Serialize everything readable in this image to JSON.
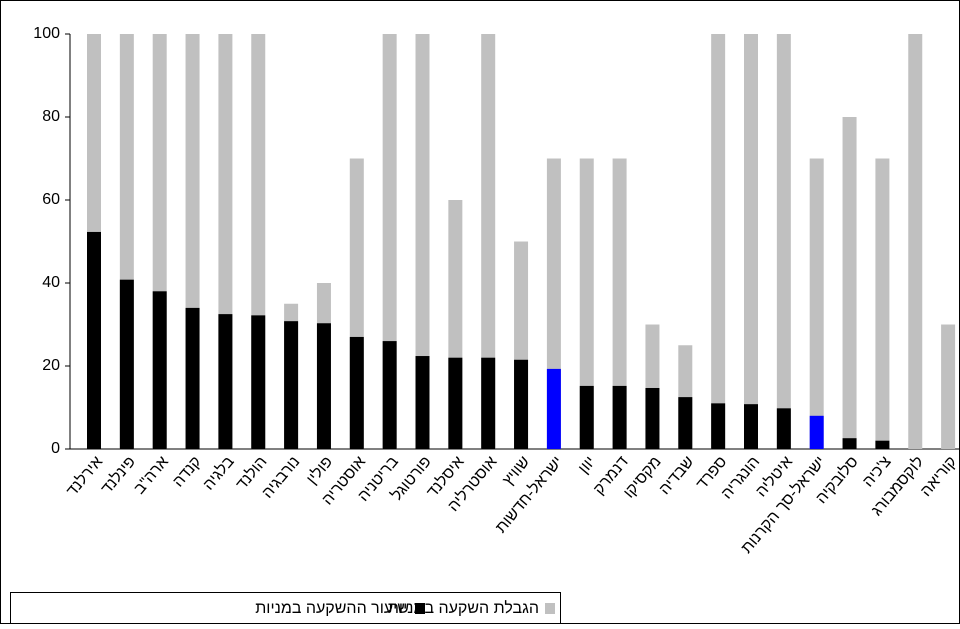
{
  "chart_data": {
    "type": "bar",
    "mode": "overlap",
    "categories": [
      "אירלנד",
      "פינלנד",
      "ארה\"ב",
      "קנדה",
      "בלגיה",
      "הולנד",
      "נורבגיה",
      "פולין",
      "אוסטריה",
      "בריטניה",
      "פורטוגל",
      "איסלנד",
      "אוסטרליה",
      "שוויץ",
      "ישראל-חדשות",
      "יוון",
      "דנמרק",
      "מקסיקו",
      "שבדיה",
      "ספרד",
      "הונגריה",
      "איטליה",
      "ישראל-סך הקרנות",
      "סלובקיה",
      "צ'כיה",
      "לוקסמבורג",
      "קוריאה"
    ],
    "series": [
      {
        "name": "הגבלת השקעה במניות",
        "color": "#c0c0c0",
        "values": [
          100,
          100,
          100,
          100,
          100,
          100,
          35,
          40,
          70,
          100,
          100,
          60,
          100,
          50,
          70,
          70,
          70,
          30,
          25,
          100,
          100,
          100,
          70,
          80,
          70,
          100,
          30
        ]
      },
      {
        "name": "שיעור ההשקעה במניות",
        "color": "#000000",
        "colors": [
          "#000000",
          "#000000",
          "#000000",
          "#000000",
          "#000000",
          "#000000",
          "#000000",
          "#000000",
          "#000000",
          "#000000",
          "#000000",
          "#000000",
          "#000000",
          "#000000",
          "#0000ff",
          "#000000",
          "#000000",
          "#000000",
          "#000000",
          "#000000",
          "#000000",
          "#000000",
          "#0000ff",
          "#000000",
          "#000000",
          "#000000",
          "#000000"
        ],
        "values": [
          52.3,
          40.8,
          38,
          34,
          32.5,
          32.2,
          30.8,
          30.3,
          27,
          26,
          22.4,
          22,
          22,
          21.5,
          19.3,
          15.2,
          15.2,
          14.7,
          12.5,
          11,
          10.8,
          9.8,
          8,
          2.6,
          2,
          0,
          0
        ]
      }
    ],
    "ylim": [
      0,
      100
    ],
    "yticks": [
      0,
      20,
      40,
      60,
      80,
      100
    ],
    "grid": false
  }
}
